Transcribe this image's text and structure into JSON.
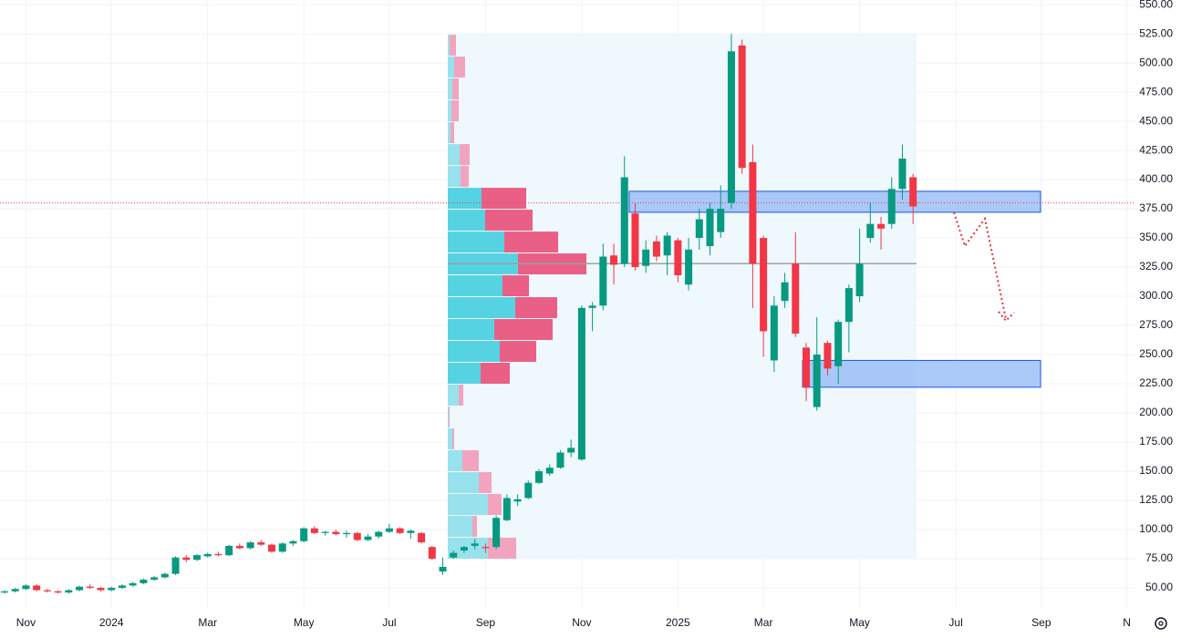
{
  "chart_data": {
    "type": "candlestick",
    "categories": [
      null,
      null,
      "Nov",
      null,
      null,
      null,
      null,
      null,
      null,
      null,
      "2024",
      null,
      null,
      null,
      null,
      null,
      null,
      null,
      null,
      "Mar",
      null,
      null,
      null,
      null,
      null,
      null,
      null,
      null,
      "May",
      null,
      null,
      null,
      null,
      null,
      null,
      null,
      "Jul",
      null,
      null,
      null,
      null,
      null,
      null,
      null,
      null,
      "Sep",
      null,
      null,
      null,
      null,
      null,
      null,
      null,
      null,
      "Nov",
      null,
      null,
      null,
      null,
      null,
      null,
      null,
      null,
      "2025",
      null,
      null,
      null,
      null,
      null,
      null,
      null,
      "Mar",
      null,
      null,
      null,
      null,
      null,
      null,
      null,
      null,
      "May",
      null,
      null,
      null,
      null,
      null,
      null,
      null,
      null,
      "Jul",
      null,
      null,
      null,
      null,
      null,
      null,
      null,
      "Sep",
      null,
      null,
      null,
      null,
      null,
      null,
      null,
      "N"
    ],
    "open": [
      46,
      47,
      49,
      52,
      48,
      47,
      46,
      48,
      51,
      50,
      48,
      50,
      52,
      54,
      57,
      59,
      62,
      76,
      74,
      77,
      79,
      78,
      86,
      84,
      89,
      87,
      81,
      88,
      90,
      101,
      97,
      98,
      96,
      97,
      91,
      94,
      98,
      101,
      97,
      97,
      85,
      64,
      76,
      82,
      86,
      85,
      85,
      108,
      124,
      127,
      140,
      148,
      153,
      166,
      160,
      290,
      292,
      335,
      328,
      371,
      326,
      347,
      335,
      348,
      310,
      350,
      343,
      355,
      380,
      515,
      415,
      350,
      245,
      296,
      328,
      256,
      205,
      260,
      240,
      278,
      300,
      350,
      362,
      362,
      392,
      402,
      null,
      null,
      null,
      null,
      null,
      null,
      null,
      null,
      null,
      null,
      null,
      null,
      null,
      null,
      null,
      null,
      null,
      null,
      null,
      null
    ],
    "high": [
      48,
      50,
      53,
      53,
      49,
      48,
      49,
      52,
      53,
      51,
      51,
      53,
      55,
      58,
      60,
      63,
      77,
      78,
      79,
      80,
      81,
      87,
      88,
      90,
      91,
      88,
      89,
      91,
      102,
      103,
      99,
      100,
      99,
      98,
      96,
      99,
      105,
      102,
      100,
      98,
      86,
      76,
      82,
      86,
      92,
      88,
      112,
      130,
      130,
      142,
      152,
      156,
      168,
      177,
      292,
      295,
      345,
      345,
      420,
      380,
      348,
      352,
      355,
      350,
      350,
      375,
      380,
      395,
      525,
      520,
      430,
      352,
      300,
      320,
      355,
      260,
      282,
      262,
      280,
      310,
      358,
      380,
      368,
      402,
      430,
      405,
      null,
      null,
      null,
      null,
      null,
      null,
      null,
      null,
      null,
      null,
      null,
      null,
      null,
      null,
      null,
      null,
      null,
      null,
      null,
      null
    ],
    "low": [
      45,
      46,
      48,
      47,
      46,
      45,
      45,
      47,
      49,
      47,
      47,
      49,
      51,
      53,
      56,
      58,
      61,
      72,
      73,
      76,
      77,
      77,
      83,
      83,
      86,
      80,
      80,
      86,
      89,
      96,
      95,
      95,
      93,
      90,
      90,
      92,
      97,
      96,
      92,
      88,
      74,
      61,
      75,
      80,
      83,
      80,
      83,
      107,
      120,
      126,
      139,
      146,
      152,
      162,
      159,
      270,
      288,
      310,
      325,
      322,
      320,
      330,
      318,
      312,
      305,
      340,
      335,
      350,
      375,
      405,
      290,
      248,
      235,
      290,
      265,
      210,
      202,
      232,
      225,
      252,
      295,
      346,
      340,
      358,
      383,
      362,
      null,
      null,
      null,
      null,
      null,
      null,
      null,
      null,
      null,
      null,
      null,
      null,
      null,
      null,
      null,
      null,
      null,
      null,
      null,
      null
    ],
    "close": [
      47,
      49,
      52,
      48,
      47,
      46,
      48,
      51,
      50,
      48,
      50,
      52,
      54,
      57,
      59,
      62,
      76,
      74,
      78,
      79,
      78,
      86,
      84,
      89,
      87,
      81,
      88,
      90,
      101,
      97,
      98,
      96,
      97,
      91,
      94,
      98,
      101,
      97,
      99,
      89,
      75,
      68,
      80,
      85,
      88,
      84,
      110,
      127,
      126,
      140,
      150,
      153,
      166,
      170,
      290,
      292,
      334,
      327,
      402,
      325,
      340,
      334,
      352,
      318,
      340,
      366,
      375,
      375,
      510,
      410,
      328,
      270,
      292,
      312,
      268,
      222,
      250,
      238,
      278,
      307,
      328,
      362,
      358,
      392,
      418,
      377,
      null,
      null,
      null,
      null,
      null,
      null,
      null,
      null,
      null,
      null,
      null,
      null,
      null,
      null,
      null,
      null,
      null,
      null,
      null,
      null
    ],
    "up_color": "#089981",
    "down_color": "#f23645",
    "ylim": [
      32,
      554
    ],
    "yticks": [
      {
        "value": 50,
        "label": "50.00"
      },
      {
        "value": 75,
        "label": "75.00"
      },
      {
        "value": 100,
        "label": "100.00"
      },
      {
        "value": 125,
        "label": "125.00"
      },
      {
        "value": 150,
        "label": "150.00"
      },
      {
        "value": 175,
        "label": "175.00"
      },
      {
        "value": 200,
        "label": "200.00"
      },
      {
        "value": 225,
        "label": "225.00"
      },
      {
        "value": 250,
        "label": "250.00"
      },
      {
        "value": 275,
        "label": "275.00"
      },
      {
        "value": 300,
        "label": "300.00"
      },
      {
        "value": 325,
        "label": "325.00"
      },
      {
        "value": 350,
        "label": "350.00"
      },
      {
        "value": 375,
        "label": "375.00"
      },
      {
        "value": 400,
        "label": "400.00"
      },
      {
        "value": 425,
        "label": "425.00"
      },
      {
        "value": 450,
        "label": "450.00"
      },
      {
        "value": 475,
        "label": "475.00"
      },
      {
        "value": 500,
        "label": "500.00"
      },
      {
        "value": 525,
        "label": "525.00"
      },
      {
        "value": 550,
        "label": "550.00"
      }
    ],
    "grid": true,
    "volume_profile": {
      "bins": [
        75,
        93.75,
        112.5,
        131.25,
        150,
        168.75,
        187.5,
        206.25,
        225,
        243.75,
        262.5,
        281.25,
        300,
        318.75,
        337.5,
        356.25,
        375,
        393.75,
        412.5,
        431.25,
        450,
        468.75,
        487.5,
        506.25,
        525
      ],
      "up": [
        44,
        27,
        44,
        34,
        16,
        5,
        1,
        12,
        36,
        57,
        51,
        74,
        60,
        77,
        62,
        41,
        37,
        14,
        13,
        3,
        4,
        5,
        7,
        2
      ],
      "down": [
        31,
        5,
        15,
        14,
        18,
        2,
        1,
        5,
        32,
        40,
        64,
        46,
        29,
        75,
        59,
        52,
        49,
        9,
        11,
        4,
        8,
        7,
        12,
        7
      ],
      "value_area": [
        225,
        393.75
      ],
      "poc": 328,
      "up_color": "#56d3e3",
      "down_color": "#ea5f86",
      "up_color_outside": "#97e2ec",
      "down_color_outside": "#f2a4bf",
      "background": "#eef8fd"
    },
    "zones": [
      {
        "low": 372,
        "high": 390
      },
      {
        "low": 222,
        "high": 245
      }
    ],
    "zone_color": "#8fb8f5",
    "last_price": 380
  }
}
